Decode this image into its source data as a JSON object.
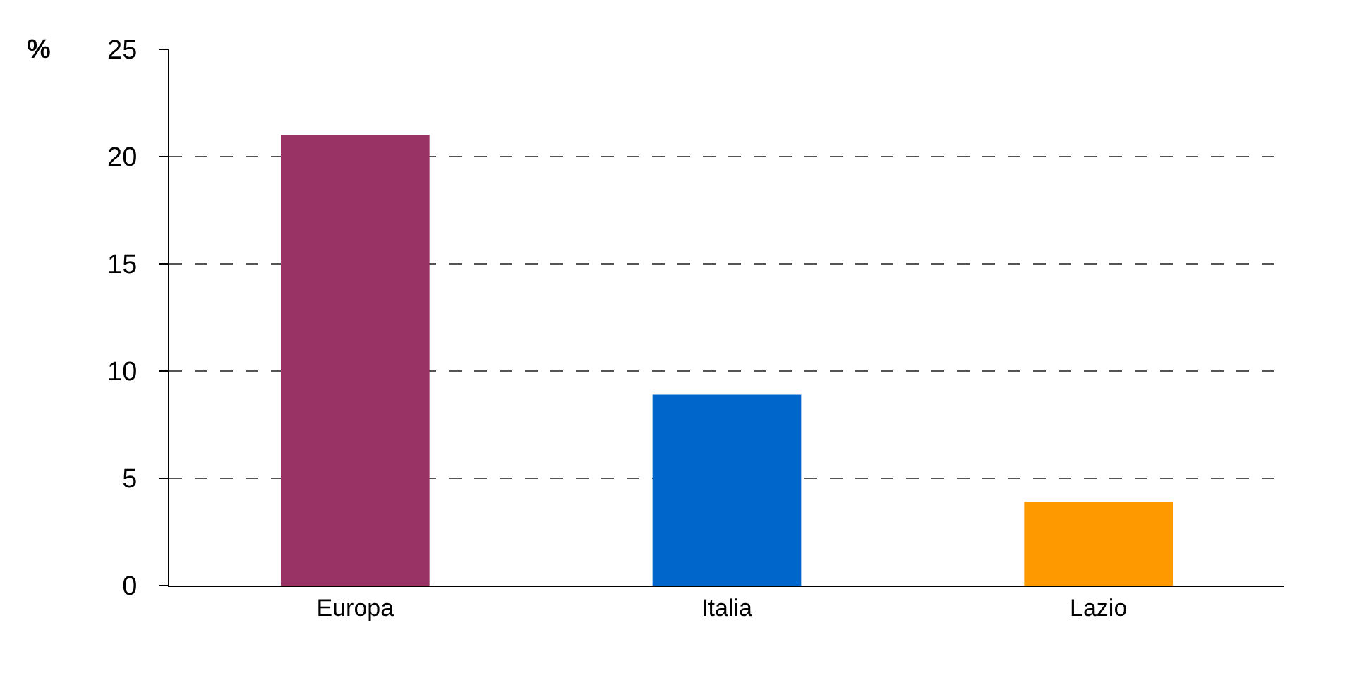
{
  "chart_data": {
    "type": "bar",
    "ylabel": "%",
    "categories": [
      "Europa",
      "Italia",
      "Lazio"
    ],
    "values": [
      21,
      8.9,
      3.9
    ],
    "colors": [
      "#993366",
      "#0066cc",
      "#ff9900"
    ],
    "ylim": [
      0,
      25
    ],
    "yticks": [
      0,
      5,
      10,
      15,
      20,
      25
    ],
    "grid": "y"
  }
}
